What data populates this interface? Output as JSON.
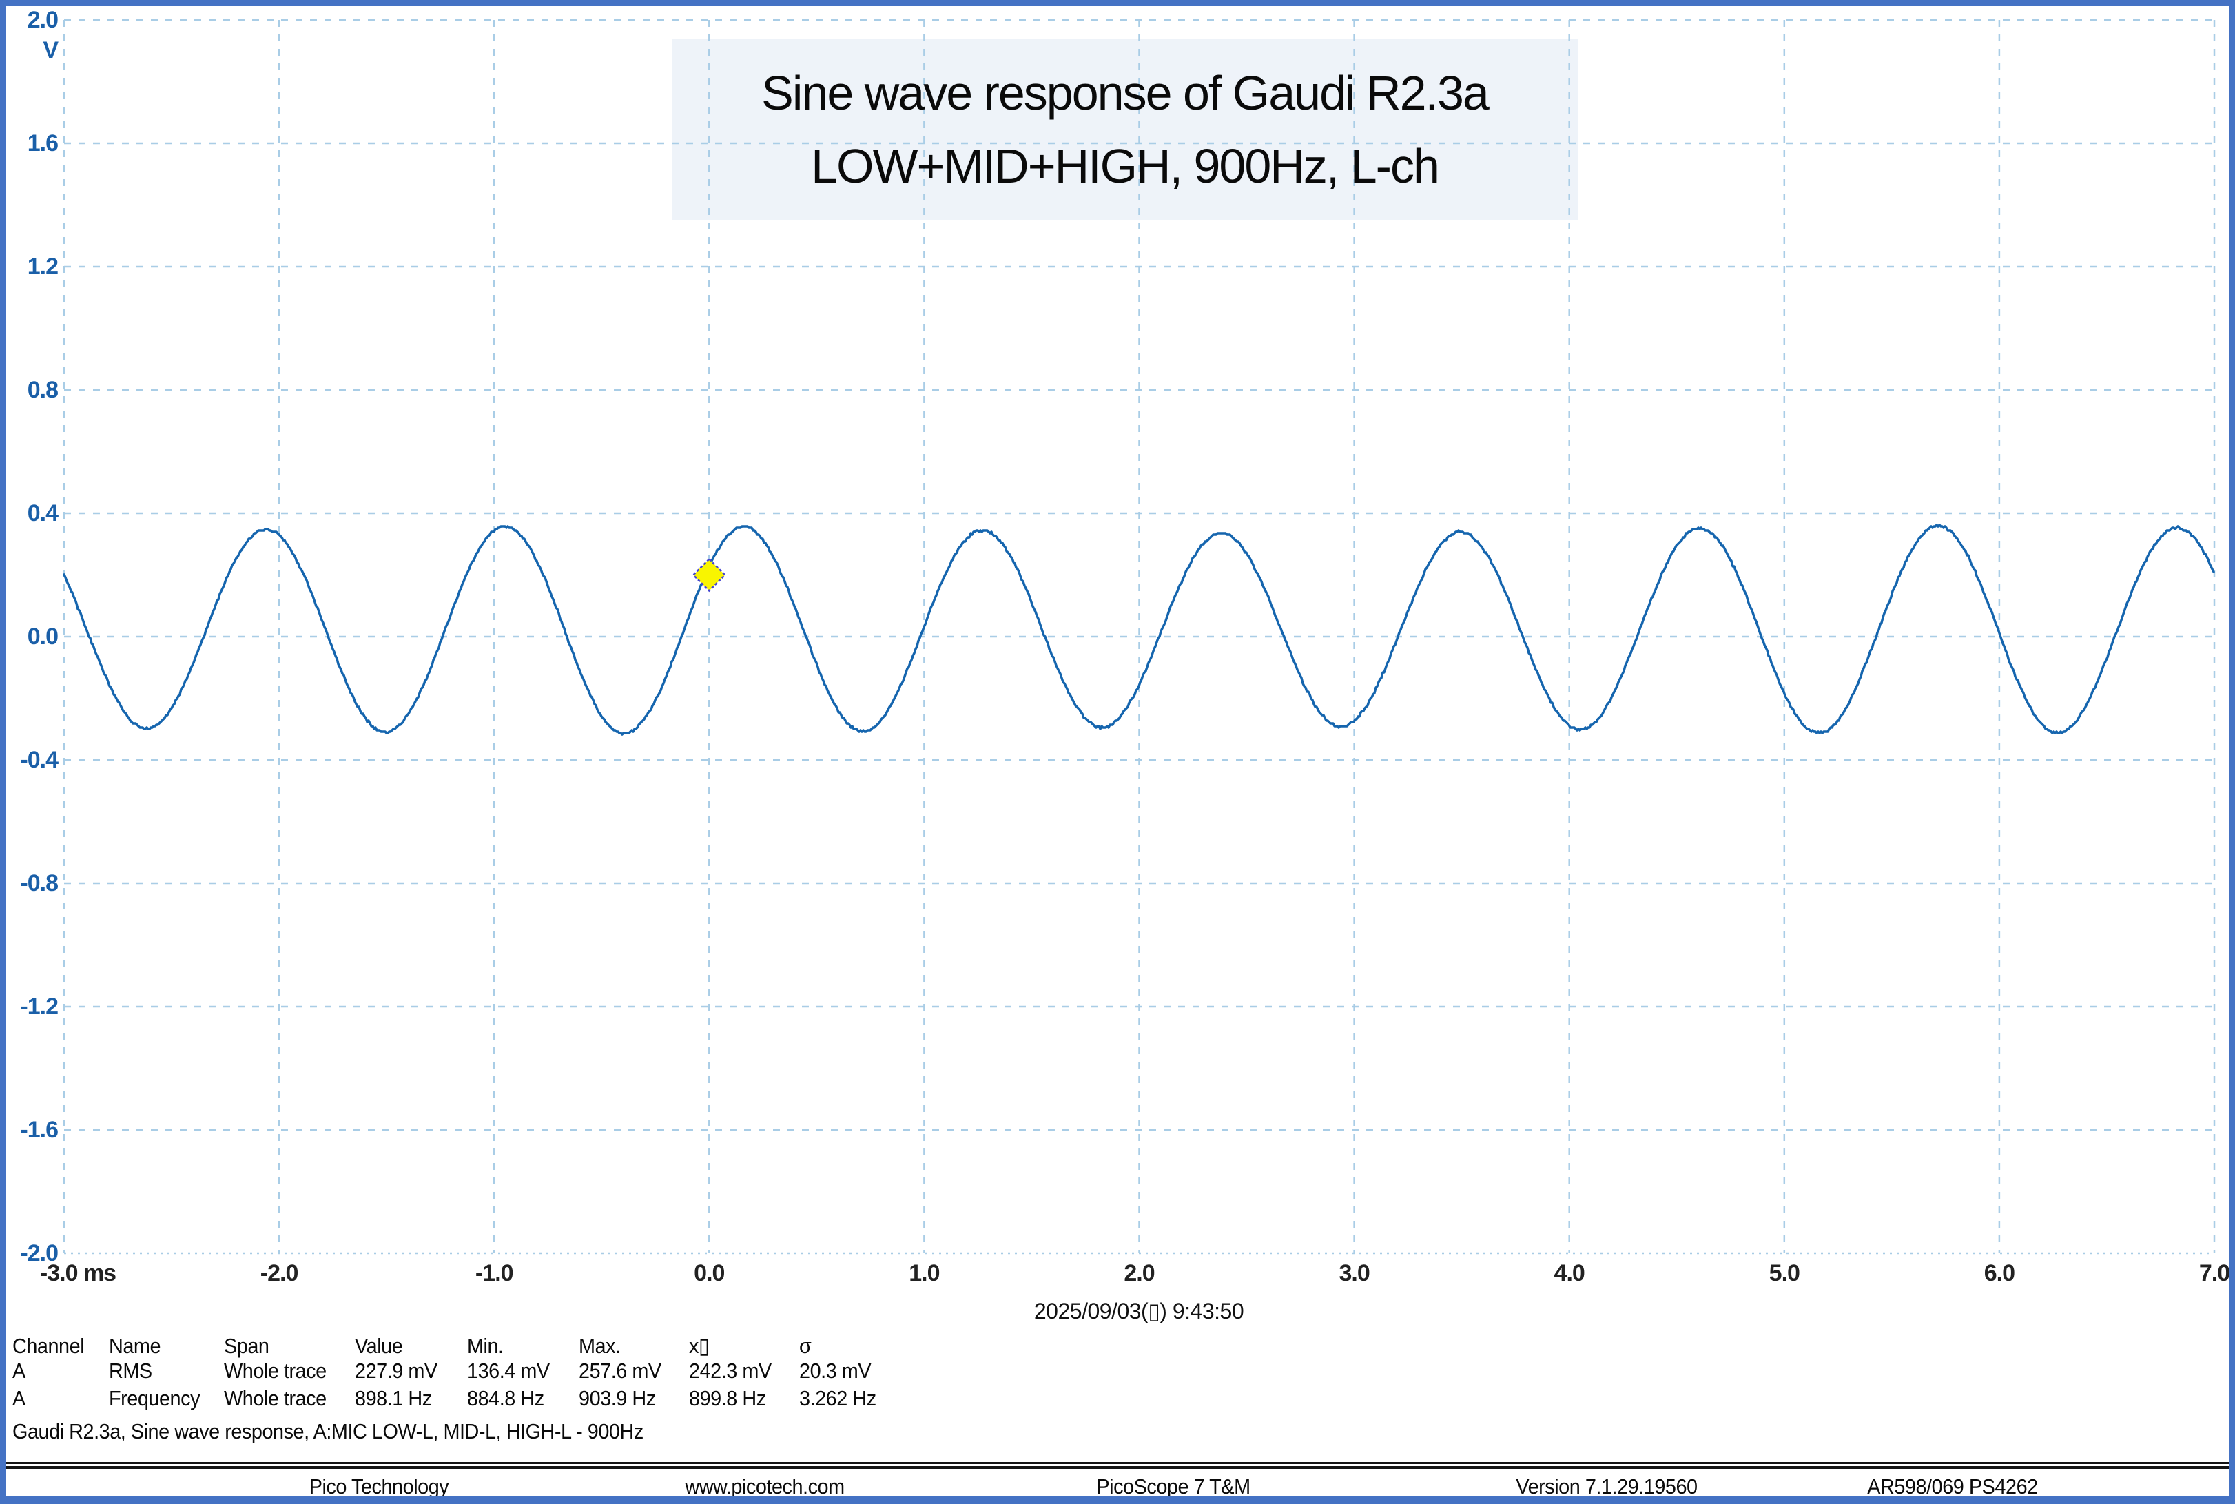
{
  "chart_data": {
    "type": "line",
    "title_line1": "Sine wave response of Gaudi R2.3a",
    "title_line2": "LOW+MID+HIGH, 900Hz, L-ch",
    "x_axis": {
      "unit": "ms",
      "min_ms": -3.0,
      "max_ms": 7.0,
      "tick_step_ms": 1.0,
      "tick_labels": [
        "-3.0 ms",
        "-2.0",
        "-1.0",
        "0.0",
        "1.0",
        "2.0",
        "3.0",
        "4.0",
        "5.0",
        "6.0",
        "7.0"
      ]
    },
    "y_axis": {
      "unit": "V",
      "min_v": -2.0,
      "max_v": 2.0,
      "tick_step_v": 0.4,
      "tick_labels": [
        "2.0",
        "1.6",
        "1.2",
        "0.8",
        "0.4",
        "0.0",
        "-0.4",
        "-0.8",
        "-1.2",
        "-1.6",
        "-2.0"
      ]
    },
    "grid": true,
    "series": [
      {
        "name": "Channel A",
        "shape": "sine",
        "frequency_hz": 900,
        "amplitude_v": 0.325,
        "offset_v": 0.022,
        "phase_rad_at_t0": 0.663,
        "amplitude_variation": 0.035,
        "visible_cycles": 9
      }
    ],
    "trigger_marker": {
      "t_ms": 0.0,
      "level_v": 0.2
    }
  },
  "timestamp": "2025/09/03(▯) 9:43:50",
  "measurements": {
    "headers": [
      "Channel",
      "Name",
      "Span",
      "Value",
      "Min.",
      "Max.",
      "x▯",
      "σ"
    ],
    "rows": [
      [
        "A",
        "RMS",
        "Whole trace",
        "227.9 mV",
        "136.4 mV",
        "257.6 mV",
        "242.3 mV",
        "20.3 mV"
      ],
      [
        "A",
        "Frequency",
        "Whole trace",
        "898.1 Hz",
        "884.8 Hz",
        "903.9 Hz",
        "899.8 Hz",
        "3.262 Hz"
      ]
    ]
  },
  "annotation": "Gaudi R2.3a, Sine wave response, A:MIC LOW-L, MID-L, HIGH-L - 900Hz",
  "footer": {
    "items": [
      "Pico Technology",
      "www.picotech.com",
      "PicoScope 7 T&M",
      "Version 7.1.29.19560",
      "AR598/069 PS4262"
    ]
  },
  "colors": {
    "frame": "#4472c4",
    "grid": "#a9cde6",
    "trace": "#1565ae",
    "axis_label_blue": "#1a5fa8",
    "axis_label_dark": "#222222",
    "title_bg": "#eef3f9",
    "marker_fill": "#f9f500",
    "marker_border": "#4444d0"
  }
}
